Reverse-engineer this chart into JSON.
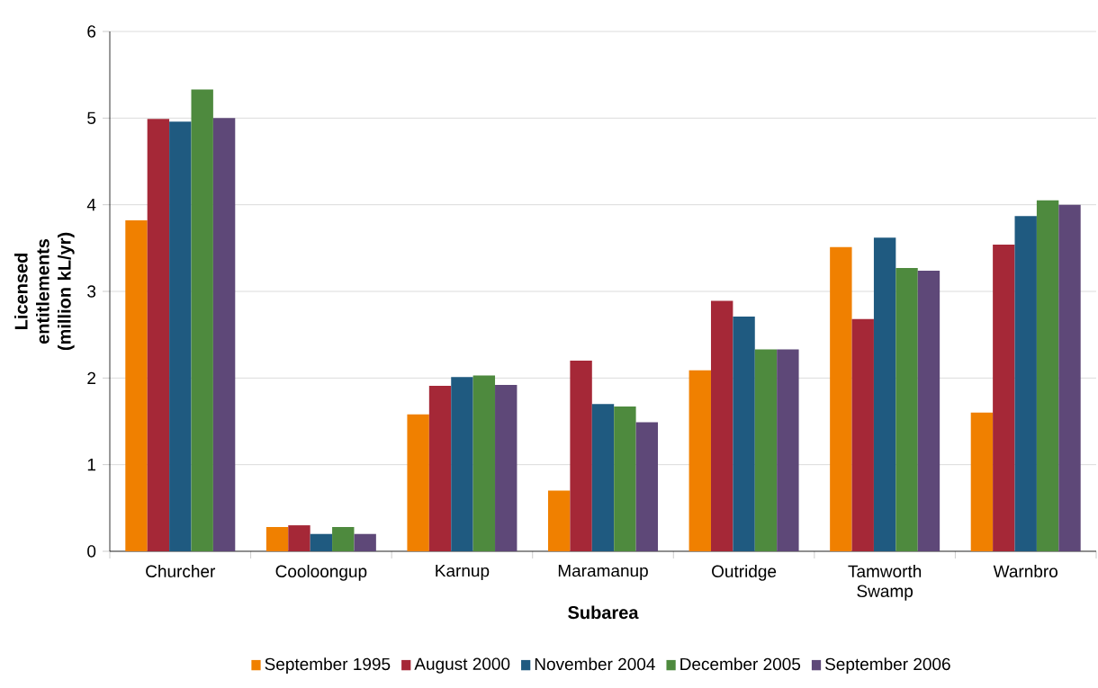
{
  "chart_data": {
    "type": "bar",
    "xlabel": "Subarea",
    "ylabel": "Licensed entitlements (million kL/yr)",
    "categories": [
      "Churcher",
      "Cooloongup",
      "Karnup",
      "Maramanup",
      "Outridge",
      "Tamworth Swamp",
      "Warnbro"
    ],
    "series": [
      {
        "name": "September 1995",
        "color": "#f08000",
        "values": [
          3.82,
          0.28,
          1.58,
          0.7,
          2.09,
          3.51,
          1.6
        ]
      },
      {
        "name": "August 2000",
        "color": "#a52837",
        "values": [
          4.99,
          0.3,
          1.91,
          2.2,
          2.89,
          2.68,
          3.54
        ]
      },
      {
        "name": "November 2004",
        "color": "#1f5a80",
        "values": [
          4.96,
          0.2,
          2.01,
          1.7,
          2.71,
          3.62,
          3.87
        ]
      },
      {
        "name": "December 2005",
        "color": "#4e8a3e",
        "values": [
          5.33,
          0.28,
          2.03,
          1.67,
          2.33,
          3.27,
          4.05
        ]
      },
      {
        "name": "September 2006",
        "color": "#5e4878",
        "values": [
          5.0,
          0.2,
          1.92,
          1.49,
          2.33,
          3.24,
          4.0
        ]
      }
    ],
    "ylim": [
      0,
      6
    ],
    "yticks": [
      0,
      1,
      2,
      3,
      4,
      5,
      6
    ],
    "grid": "y",
    "legend": "bottom"
  }
}
